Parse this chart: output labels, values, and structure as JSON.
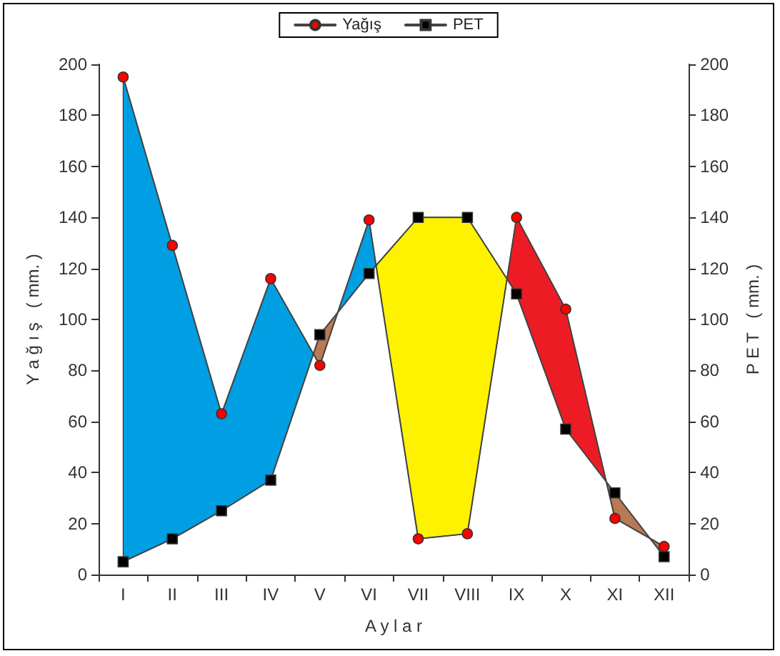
{
  "chart_data": {
    "type": "line",
    "xlabel": "A y l a r",
    "ylabel": "Y a ğ ı ş   ( mm. )",
    "y2label": "P E T   ( mm. )",
    "categories": [
      "I",
      "II",
      "III",
      "IV",
      "V",
      "VI",
      "VII",
      "VIII",
      "IX",
      "X",
      "XI",
      "XII"
    ],
    "ylim": [
      0,
      200
    ],
    "yticks": [
      0,
      20,
      40,
      60,
      80,
      100,
      120,
      140,
      160,
      180,
      200
    ],
    "y2lim": [
      0,
      200
    ],
    "y2ticks": [
      0,
      20,
      40,
      60,
      80,
      100,
      120,
      140,
      160,
      180,
      200
    ],
    "grid": false,
    "legend": "top",
    "series": [
      {
        "name": "Yağış",
        "color": "#ff0000",
        "marker": "circle",
        "values": [
          195,
          129,
          63,
          116,
          82,
          139,
          14,
          16,
          140,
          104,
          22,
          11
        ]
      },
      {
        "name": "PET",
        "color": "#000000",
        "marker": "square",
        "values": [
          5,
          14,
          25,
          37,
          94,
          118,
          140,
          140,
          110,
          57,
          32,
          7
        ]
      }
    ]
  }
}
